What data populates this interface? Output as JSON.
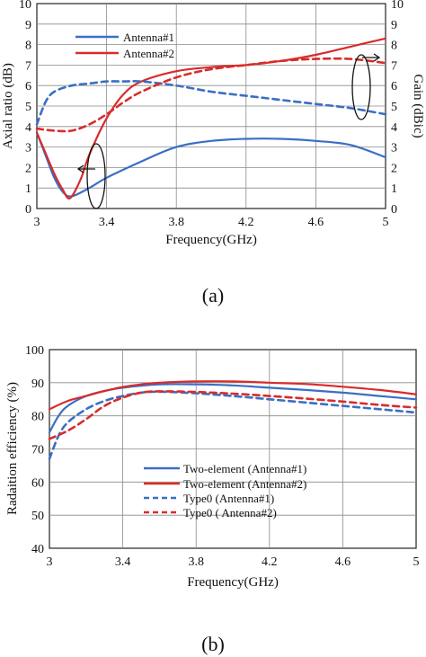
{
  "chart_data": [
    {
      "type": "line",
      "caption": "(a)",
      "xlabel": "Frequency(GHz)",
      "ylabel": "Axial ratio (dB)",
      "y2label": "Gain (dBic)",
      "xlim": [
        3,
        5
      ],
      "ylim": [
        0,
        10
      ],
      "y2lim": [
        0,
        10
      ],
      "xticks": [
        "3",
        "3.4",
        "3.8",
        "4.2",
        "4.6",
        "5"
      ],
      "yticks": [
        "0",
        "1",
        "2",
        "3",
        "4",
        "5",
        "6",
        "7",
        "8",
        "9",
        "10"
      ],
      "y2ticks": [
        "0",
        "1",
        "2",
        "3",
        "4",
        "5",
        "6",
        "7",
        "8",
        "9",
        "10"
      ],
      "grid": true,
      "legend_position": "top-left",
      "legend": [
        "Antenna#1",
        "Antenna#2"
      ],
      "series": [
        {
          "name": "Antenna#1",
          "kind": "axial-ratio",
          "axis": "left",
          "color": "#3a6fc4",
          "style": "solid",
          "x": [
            3.0,
            3.05,
            3.1,
            3.15,
            3.2,
            3.3,
            3.4,
            3.6,
            3.8,
            4.0,
            4.2,
            4.4,
            4.6,
            4.8,
            5.0
          ],
          "y": [
            3.7,
            2.6,
            1.5,
            0.8,
            0.6,
            1.0,
            1.5,
            2.3,
            3.0,
            3.3,
            3.4,
            3.4,
            3.3,
            3.1,
            2.5
          ]
        },
        {
          "name": "Antenna#2",
          "kind": "axial-ratio",
          "axis": "left",
          "color": "#d92b2b",
          "style": "solid",
          "x": [
            3.0,
            3.05,
            3.1,
            3.15,
            3.19,
            3.25,
            3.3,
            3.4,
            3.5,
            3.6,
            3.8,
            4.0,
            4.2,
            4.4,
            4.6,
            4.8,
            5.0
          ],
          "y": [
            3.7,
            2.7,
            1.7,
            0.9,
            0.5,
            1.4,
            2.6,
            4.4,
            5.6,
            6.2,
            6.7,
            6.9,
            7.0,
            7.2,
            7.5,
            7.9,
            8.3
          ]
        },
        {
          "name": "Antenna#1",
          "kind": "gain",
          "axis": "right",
          "color": "#3a6fc4",
          "style": "dashed",
          "x": [
            3.0,
            3.05,
            3.1,
            3.2,
            3.3,
            3.4,
            3.5,
            3.6,
            3.8,
            4.0,
            4.2,
            4.4,
            4.6,
            4.8,
            5.0
          ],
          "y": [
            4.1,
            5.2,
            5.7,
            6.0,
            6.1,
            6.2,
            6.2,
            6.2,
            6.0,
            5.7,
            5.5,
            5.3,
            5.1,
            4.9,
            4.6
          ]
        },
        {
          "name": "Antenna#2",
          "kind": "gain",
          "axis": "right",
          "color": "#d92b2b",
          "style": "dashed",
          "x": [
            3.0,
            3.1,
            3.2,
            3.3,
            3.4,
            3.5,
            3.6,
            3.8,
            4.0,
            4.2,
            4.4,
            4.6,
            4.8,
            5.0
          ],
          "y": [
            3.9,
            3.8,
            3.8,
            4.1,
            4.6,
            5.2,
            5.7,
            6.4,
            6.8,
            7.0,
            7.2,
            7.3,
            7.3,
            7.1
          ]
        }
      ]
    },
    {
      "type": "line",
      "caption": "(b)",
      "xlabel": "Frequency(GHz)",
      "ylabel": "Radaition efficiency (%)",
      "xlim": [
        3,
        5
      ],
      "ylim": [
        40,
        100
      ],
      "xticks": [
        "3",
        "3.4",
        "3.8",
        "4.2",
        "4.6",
        "5"
      ],
      "yticks": [
        "40",
        "50",
        "60",
        "70",
        "80",
        "90",
        "100"
      ],
      "grid": true,
      "legend_position": "bottom-center",
      "legend": [
        "Two-element (Antenna#1)",
        "Two-element (Antenna#2)",
        "Type0 (Antenna#1)",
        "Type0 ( Antenna#2)"
      ],
      "series": [
        {
          "name": "Two-element (Antenna#1)",
          "color": "#3a6fc4",
          "style": "solid",
          "x": [
            3.0,
            3.05,
            3.1,
            3.2,
            3.3,
            3.4,
            3.6,
            3.8,
            4.0,
            4.2,
            4.4,
            4.6,
            4.8,
            5.0
          ],
          "y": [
            75,
            80,
            83,
            86,
            87.5,
            88.5,
            89.5,
            89.5,
            89.2,
            88.5,
            87.8,
            87,
            86,
            85
          ]
        },
        {
          "name": "Two-element (Antenna#2)",
          "color": "#d92b2b",
          "style": "solid",
          "x": [
            3.0,
            3.1,
            3.2,
            3.3,
            3.4,
            3.5,
            3.6,
            3.8,
            4.0,
            4.2,
            4.4,
            4.6,
            4.8,
            5.0
          ],
          "y": [
            82,
            84.5,
            86,
            87.5,
            88.7,
            89.5,
            90,
            90.4,
            90.4,
            90,
            89.6,
            88.8,
            87.8,
            86.5
          ]
        },
        {
          "name": "Type0 (Antenna#1)",
          "color": "#3a6fc4",
          "style": "dashed",
          "x": [
            3.0,
            3.05,
            3.1,
            3.2,
            3.3,
            3.4,
            3.5,
            3.6,
            3.8,
            4.0,
            4.2,
            4.4,
            4.6,
            4.8,
            5.0
          ],
          "y": [
            67,
            74,
            78,
            82,
            84.5,
            86,
            87,
            87.3,
            86.8,
            86,
            85,
            84,
            83,
            82,
            81
          ]
        },
        {
          "name": "Type0 ( Antenna#2)",
          "color": "#d92b2b",
          "style": "dashed",
          "x": [
            3.0,
            3.1,
            3.2,
            3.3,
            3.4,
            3.5,
            3.6,
            3.8,
            4.0,
            4.2,
            4.4,
            4.6,
            4.8,
            5.0
          ],
          "y": [
            73,
            75.5,
            79,
            83,
            85.5,
            87,
            87.4,
            87.2,
            86.7,
            86,
            85.2,
            84.3,
            83.3,
            82.5
          ]
        }
      ]
    }
  ]
}
